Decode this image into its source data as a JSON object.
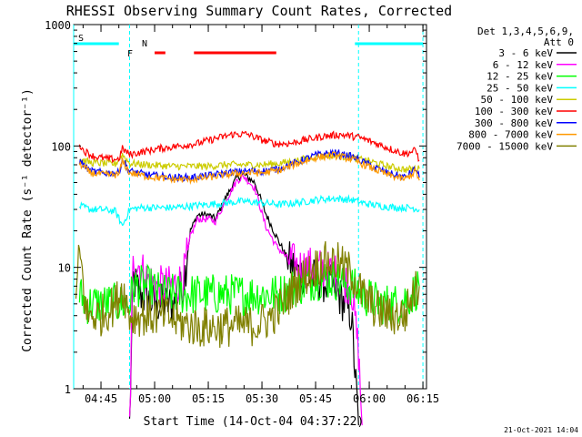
{
  "chart_data": {
    "type": "line",
    "title": "RHESSI Observing Summary Count Rates, Corrected",
    "xlabel": "Start Time (14-Oct-04 04:37:22)",
    "ylabel": "Corrected Count Rate (s⁻¹ detector⁻¹)",
    "y_scale": "log",
    "ylim": [
      1,
      1000
    ],
    "xlim": [
      "04:37:22",
      "06:16"
    ],
    "x_ticks": [
      "04:45",
      "05:00",
      "05:15",
      "05:30",
      "05:45",
      "06:00",
      "06:15"
    ],
    "y_ticks": [
      "1",
      "10",
      "100",
      "1000"
    ],
    "legend_header": [
      "Det 1,3,4,5,6,9,",
      "Att 0"
    ],
    "legend_position": "right",
    "flags": [
      {
        "label": "S",
        "color": "#ff9900",
        "segments": [
          [
            "04:37:22",
            "04:50"
          ],
          [
            "05:56",
            "06:15"
          ]
        ]
      },
      {
        "label": "N",
        "color": "#00ffff",
        "segments": []
      },
      {
        "label": "F",
        "color": "#ff0000",
        "segments": [
          [
            "05:00",
            "05:03"
          ],
          [
            "05:11",
            "05:34"
          ]
        ]
      }
    ],
    "night_lines": [
      "04:37:22",
      "04:53",
      "05:57",
      "06:15"
    ],
    "series": [
      {
        "name": "3 - 6 keV",
        "color": "#000000",
        "points": [
          [
            "04:53",
            0
          ],
          [
            "04:54",
            8
          ],
          [
            "04:56",
            6
          ],
          [
            "05:00",
            5
          ],
          [
            "05:05",
            5
          ],
          [
            "05:08",
            7
          ],
          [
            "05:10",
            20
          ],
          [
            "05:12",
            27
          ],
          [
            "05:15",
            27
          ],
          [
            "05:17",
            25
          ],
          [
            "05:20",
            38
          ],
          [
            "05:23",
            55
          ],
          [
            "05:25",
            58
          ],
          [
            "05:28",
            50
          ],
          [
            "05:31",
            28
          ],
          [
            "05:34",
            18
          ],
          [
            "05:37",
            12
          ],
          [
            "05:40",
            9
          ],
          [
            "05:45",
            8
          ],
          [
            "05:50",
            7
          ],
          [
            "05:55",
            4
          ],
          [
            "05:57",
            0
          ]
        ]
      },
      {
        "name": "6 - 12 keV",
        "color": "#ff00ff",
        "points": [
          [
            "04:53",
            0
          ],
          [
            "04:54",
            12
          ],
          [
            "04:56",
            10
          ],
          [
            "04:58",
            8
          ],
          [
            "05:01",
            7
          ],
          [
            "05:05",
            7
          ],
          [
            "05:08",
            8
          ],
          [
            "05:10",
            18
          ],
          [
            "05:12",
            25
          ],
          [
            "05:15",
            25
          ],
          [
            "05:17",
            24
          ],
          [
            "05:20",
            36
          ],
          [
            "05:23",
            52
          ],
          [
            "05:25",
            56
          ],
          [
            "05:28",
            45
          ],
          [
            "05:31",
            22
          ],
          [
            "05:34",
            15
          ],
          [
            "05:37",
            12
          ],
          [
            "05:40",
            10
          ],
          [
            "05:45",
            10
          ],
          [
            "05:50",
            9
          ],
          [
            "05:55",
            7
          ],
          [
            "05:57",
            2
          ],
          [
            "05:58",
            0.5
          ]
        ]
      },
      {
        "name": "12 - 25 keV",
        "color": "#00ff00",
        "points": [
          [
            "04:39",
            6
          ],
          [
            "04:41",
            5
          ],
          [
            "04:45",
            5
          ],
          [
            "04:50",
            5
          ],
          [
            "04:53",
            5
          ],
          [
            "04:54",
            7
          ],
          [
            "04:58",
            7
          ],
          [
            "05:02",
            6
          ],
          [
            "05:06",
            6
          ],
          [
            "05:10",
            6
          ],
          [
            "05:15",
            6
          ],
          [
            "05:20",
            6
          ],
          [
            "05:25",
            6
          ],
          [
            "05:30",
            6
          ],
          [
            "05:35",
            6
          ],
          [
            "05:40",
            7
          ],
          [
            "05:45",
            8
          ],
          [
            "05:50",
            8
          ],
          [
            "05:55",
            7
          ],
          [
            "05:58",
            6
          ],
          [
            "06:03",
            5
          ],
          [
            "06:08",
            5
          ],
          [
            "06:12",
            6
          ],
          [
            "06:14",
            7
          ]
        ]
      },
      {
        "name": "25 - 50 keV",
        "color": "#00ffff",
        "points": [
          [
            "04:39",
            32
          ],
          [
            "04:42",
            30
          ],
          [
            "04:45",
            30
          ],
          [
            "04:49",
            29
          ],
          [
            "04:51",
            22
          ],
          [
            "04:53",
            30
          ],
          [
            "04:56",
            31
          ],
          [
            "05:00",
            31
          ],
          [
            "05:05",
            31
          ],
          [
            "05:10",
            32
          ],
          [
            "05:15",
            33
          ],
          [
            "05:20",
            34
          ],
          [
            "05:25",
            35
          ],
          [
            "05:30",
            34
          ],
          [
            "05:35",
            33
          ],
          [
            "05:40",
            34
          ],
          [
            "05:45",
            36
          ],
          [
            "05:50",
            37
          ],
          [
            "05:55",
            36
          ],
          [
            "05:58",
            34
          ],
          [
            "06:03",
            32
          ],
          [
            "06:08",
            31
          ],
          [
            "06:12",
            31
          ],
          [
            "06:14",
            30
          ]
        ]
      },
      {
        "name": "50 - 100 keV",
        "color": "#cccc00",
        "points": [
          [
            "04:39",
            78
          ],
          [
            "04:42",
            73
          ],
          [
            "04:45",
            72
          ],
          [
            "04:49",
            71
          ],
          [
            "04:51",
            85
          ],
          [
            "04:53",
            72
          ],
          [
            "04:58",
            70
          ],
          [
            "05:05",
            68
          ],
          [
            "05:10",
            68
          ],
          [
            "05:15",
            68
          ],
          [
            "05:20",
            70
          ],
          [
            "05:25",
            70
          ],
          [
            "05:30",
            70
          ],
          [
            "05:35",
            72
          ],
          [
            "05:40",
            76
          ],
          [
            "05:45",
            82
          ],
          [
            "05:50",
            84
          ],
          [
            "05:55",
            80
          ],
          [
            "06:00",
            75
          ],
          [
            "06:05",
            68
          ],
          [
            "06:10",
            64
          ],
          [
            "06:14",
            65
          ]
        ]
      },
      {
        "name": "100 - 300 keV",
        "color": "#ff0000",
        "points": [
          [
            "04:39",
            105
          ],
          [
            "04:40",
            92
          ],
          [
            "04:43",
            82
          ],
          [
            "04:47",
            78
          ],
          [
            "04:50",
            78
          ],
          [
            "04:51",
            95
          ],
          [
            "04:53",
            85
          ],
          [
            "04:57",
            90
          ],
          [
            "05:02",
            96
          ],
          [
            "05:07",
            100
          ],
          [
            "05:12",
            105
          ],
          [
            "05:17",
            115
          ],
          [
            "05:22",
            125
          ],
          [
            "05:26",
            125
          ],
          [
            "05:30",
            112
          ],
          [
            "05:34",
            104
          ],
          [
            "05:38",
            105
          ],
          [
            "05:42",
            112
          ],
          [
            "05:47",
            120
          ],
          [
            "05:52",
            124
          ],
          [
            "05:57",
            118
          ],
          [
            "06:02",
            105
          ],
          [
            "06:07",
            92
          ],
          [
            "06:10",
            86
          ],
          [
            "06:13",
            92
          ],
          [
            "06:14",
            76
          ]
        ]
      },
      {
        "name": "300 - 800 keV",
        "color": "#0000ff",
        "points": [
          [
            "04:39",
            75
          ],
          [
            "04:42",
            62
          ],
          [
            "04:46",
            60
          ],
          [
            "04:50",
            60
          ],
          [
            "04:51",
            78
          ],
          [
            "04:53",
            62
          ],
          [
            "04:58",
            58
          ],
          [
            "05:05",
            55
          ],
          [
            "05:10",
            55
          ],
          [
            "05:15",
            57
          ],
          [
            "05:20",
            60
          ],
          [
            "05:25",
            62
          ],
          [
            "05:30",
            62
          ],
          [
            "05:35",
            65
          ],
          [
            "05:40",
            74
          ],
          [
            "05:45",
            84
          ],
          [
            "05:50",
            88
          ],
          [
            "05:55",
            82
          ],
          [
            "06:00",
            70
          ],
          [
            "06:05",
            60
          ],
          [
            "06:10",
            55
          ],
          [
            "06:13",
            65
          ],
          [
            "06:14",
            55
          ]
        ]
      },
      {
        "name": "800 - 7000 keV",
        "color": "#ff9900",
        "points": [
          [
            "04:39",
            72
          ],
          [
            "04:42",
            60
          ],
          [
            "04:46",
            58
          ],
          [
            "04:50",
            58
          ],
          [
            "04:51",
            75
          ],
          [
            "04:53",
            60
          ],
          [
            "04:58",
            56
          ],
          [
            "05:05",
            53
          ],
          [
            "05:10",
            53
          ],
          [
            "05:15",
            55
          ],
          [
            "05:20",
            58
          ],
          [
            "05:25",
            60
          ],
          [
            "05:30",
            60
          ],
          [
            "05:35",
            63
          ],
          [
            "05:40",
            72
          ],
          [
            "05:45",
            80
          ],
          [
            "05:50",
            84
          ],
          [
            "05:55",
            78
          ],
          [
            "06:00",
            67
          ],
          [
            "06:05",
            58
          ],
          [
            "06:10",
            53
          ],
          [
            "06:13",
            62
          ],
          [
            "06:14",
            52
          ]
        ]
      },
      {
        "name": "7000 - 15000 keV",
        "color": "#808000",
        "points": [
          [
            "04:38",
            5
          ],
          [
            "04:39",
            14
          ],
          [
            "04:41",
            4
          ],
          [
            "04:45",
            4
          ],
          [
            "04:49",
            5
          ],
          [
            "04:51",
            7
          ],
          [
            "04:53",
            4
          ],
          [
            "04:58",
            4
          ],
          [
            "05:03",
            4
          ],
          [
            "05:07",
            3.5
          ],
          [
            "05:12",
            3.2
          ],
          [
            "05:17",
            3.2
          ],
          [
            "05:22",
            3.3
          ],
          [
            "05:27",
            3.3
          ],
          [
            "05:30",
            3.5
          ],
          [
            "05:33",
            4
          ],
          [
            "05:36",
            5
          ],
          [
            "05:39",
            7
          ],
          [
            "05:43",
            9
          ],
          [
            "05:47",
            11
          ],
          [
            "05:51",
            11
          ],
          [
            "05:55",
            9
          ],
          [
            "05:58",
            6
          ],
          [
            "06:02",
            4.5
          ],
          [
            "06:06",
            4
          ],
          [
            "06:10",
            4
          ],
          [
            "06:12",
            6
          ],
          [
            "06:14",
            7
          ]
        ]
      }
    ]
  },
  "footer": {
    "timestamp": "21-Oct-2021 14:04"
  }
}
